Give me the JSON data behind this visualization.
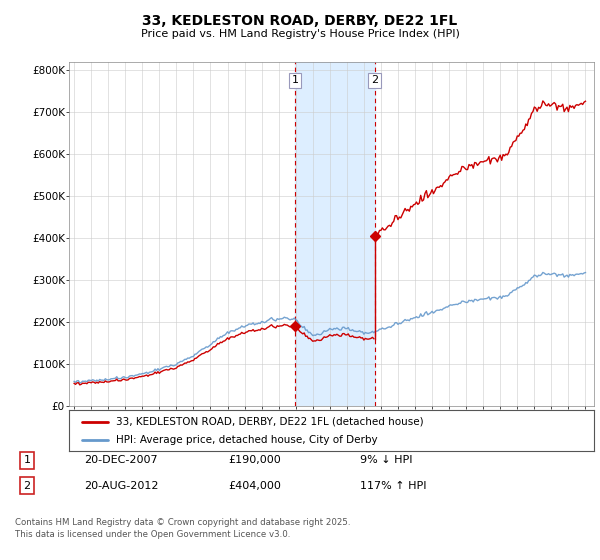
{
  "title": "33, KEDLESTON ROAD, DERBY, DE22 1FL",
  "subtitle": "Price paid vs. HM Land Registry's House Price Index (HPI)",
  "legend_line1": "33, KEDLESTON ROAD, DERBY, DE22 1FL (detached house)",
  "legend_line2": "HPI: Average price, detached house, City of Derby",
  "footer": "Contains HM Land Registry data © Crown copyright and database right 2025.\nThis data is licensed under the Open Government Licence v3.0.",
  "annotation1_label": "1",
  "annotation1_date": "20-DEC-2007",
  "annotation1_price": "£190,000",
  "annotation1_hpi": "9% ↓ HPI",
  "annotation2_label": "2",
  "annotation2_date": "20-AUG-2012",
  "annotation2_price": "£404,000",
  "annotation2_hpi": "117% ↑ HPI",
  "sale1_year": 2007.97,
  "sale1_price": 190000,
  "sale2_year": 2012.64,
  "sale2_price": 404000,
  "red_line_color": "#cc0000",
  "blue_line_color": "#6699cc",
  "shading_color": "#ddeeff",
  "annotation_line_color": "#cc0000",
  "background_color": "#ffffff",
  "ylim": [
    0,
    820000
  ],
  "xlim_start": 1994.7,
  "xlim_end": 2025.5,
  "yticks": [
    0,
    100000,
    200000,
    300000,
    400000,
    500000,
    600000,
    700000,
    800000
  ],
  "ytick_labels": [
    "£0",
    "£100K",
    "£200K",
    "£300K",
    "£400K",
    "£500K",
    "£600K",
    "£700K",
    "£800K"
  ],
  "xticks": [
    1995,
    1996,
    1997,
    1998,
    1999,
    2000,
    2001,
    2002,
    2003,
    2004,
    2005,
    2006,
    2007,
    2008,
    2009,
    2010,
    2011,
    2012,
    2013,
    2014,
    2015,
    2016,
    2017,
    2018,
    2019,
    2020,
    2021,
    2022,
    2023,
    2024,
    2025
  ]
}
